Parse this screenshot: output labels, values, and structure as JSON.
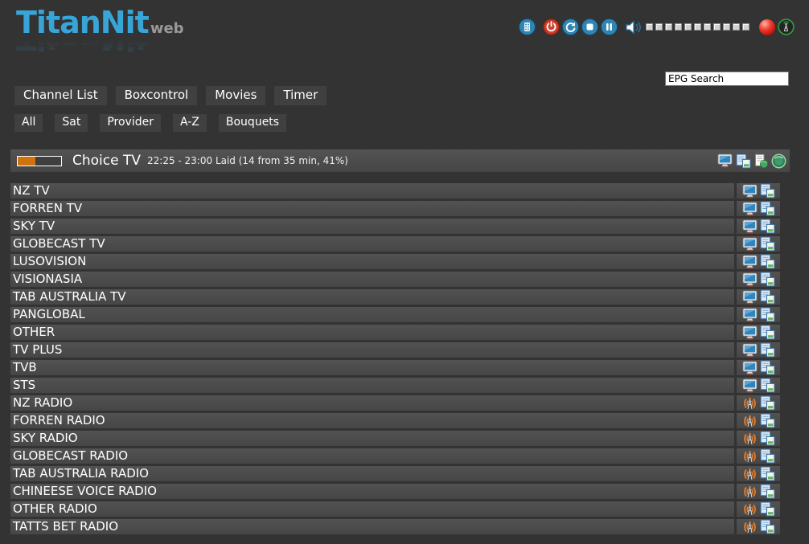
{
  "app": {
    "logo_title": "TitanNit",
    "logo_suffix": "web"
  },
  "header_controls": {
    "icons": [
      "remote-icon",
      "power-icon",
      "restart-icon",
      "stop-icon",
      "pause-icon",
      "volume-icon",
      "record-indicator",
      "antenna-icon"
    ],
    "volume_steps": 11
  },
  "search": {
    "value": "EPG Search"
  },
  "nav": {
    "items": [
      "Channel List",
      "Boxcontrol",
      "Movies",
      "Timer"
    ]
  },
  "filters": {
    "items": [
      "All",
      "Sat",
      "Provider",
      "A-Z",
      "Bouquets"
    ]
  },
  "now_playing": {
    "channel": "Choice TV",
    "epg_info": "22:25 - 23:00 Laid (14 from 35 min, 41%)",
    "progress_percent": 41,
    "icons": [
      "tv-icon",
      "epg-copy-icon",
      "doc-globe-icon",
      "globe-icon"
    ]
  },
  "channels": [
    {
      "name": "NZ TV",
      "type": "tv"
    },
    {
      "name": "FORREN TV",
      "type": "tv"
    },
    {
      "name": "SKY TV",
      "type": "tv"
    },
    {
      "name": "GLOBECAST TV",
      "type": "tv"
    },
    {
      "name": "LUSOVISION",
      "type": "tv"
    },
    {
      "name": "VISIONASIA",
      "type": "tv"
    },
    {
      "name": "TAB AUSTRALIA TV",
      "type": "tv"
    },
    {
      "name": "PANGLOBAL",
      "type": "tv"
    },
    {
      "name": "OTHER",
      "type": "tv"
    },
    {
      "name": "TV PLUS",
      "type": "tv"
    },
    {
      "name": "TVB",
      "type": "tv"
    },
    {
      "name": "STS",
      "type": "tv"
    },
    {
      "name": "NZ RADIO",
      "type": "radio"
    },
    {
      "name": "FORREN RADIO",
      "type": "radio"
    },
    {
      "name": "SKY RADIO",
      "type": "radio"
    },
    {
      "name": "GLOBECAST RADIO",
      "type": "radio"
    },
    {
      "name": "TAB AUSTRALIA RADIO",
      "type": "radio"
    },
    {
      "name": "CHINEESE VOICE RADIO",
      "type": "radio"
    },
    {
      "name": "OTHER RADIO",
      "type": "radio"
    },
    {
      "name": "TATTS BET RADIO",
      "type": "radio"
    }
  ],
  "colors": {
    "accent_blue": "#38a5d8",
    "orange": "#d2720a",
    "page_bg": "#333333",
    "row_bg": "#4b4b4b",
    "button_bg": "#404040",
    "record_red": "#e8241a",
    "green": "#2e9b3e"
  }
}
